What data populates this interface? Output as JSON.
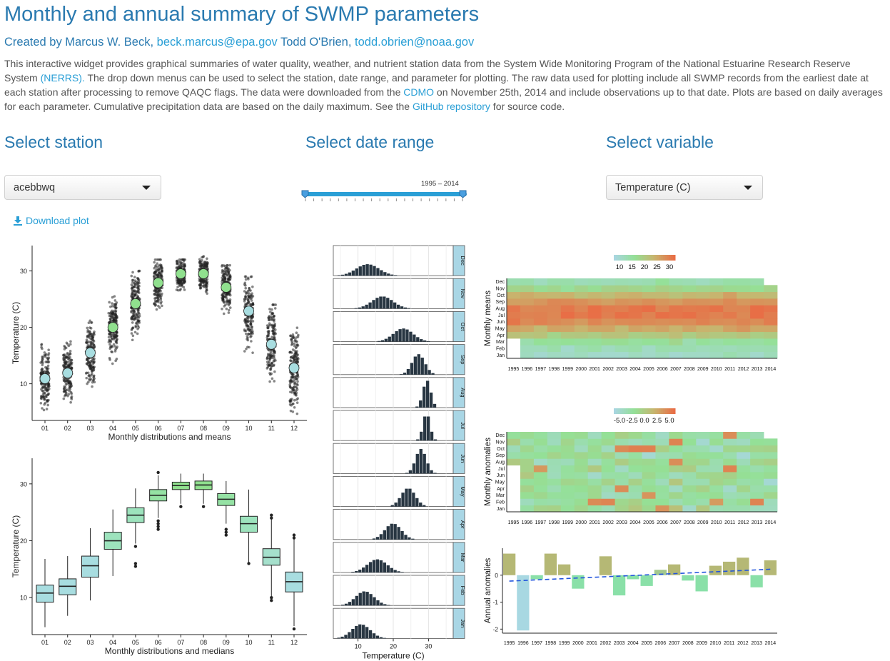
{
  "header": {
    "title": "Monthly and annual summary of SWMP parameters",
    "byline_prefix": "Created by Marcus W. Beck,",
    "author1_email": "beck.marcus@epa.gov",
    "author2": "Todd O'Brien,",
    "author2_email": "todd.obrien@noaa.gov"
  },
  "intro": {
    "p1": "This interactive widget provides graphical summaries of water quality, weather, and nutrient station data from the System Wide Monitoring Program of the National Estuarine Research Reserve System ",
    "link_nerrs": "(NERRS).",
    "p2": " The drop down menus can be used to select the station, date range, and parameter for plotting. The raw data used for plotting include all SWMP records from the earliest date at each station after processing to remove QAQC flags. The data were downloaded from the ",
    "link_cdmo": "CDMO",
    "p3": " on November 25th, 2014 and include observations up to that date. Plots are based on daily averages for each parameter. Cumulative precipitation data are based on the daily maximum. See the ",
    "link_github": "GitHub repository",
    "p4": " for source code."
  },
  "controls": {
    "station_heading": "Select station",
    "station_value": "acebbwq",
    "date_heading": "Select date range",
    "date_range": "1995 – 2014",
    "date_start": 1995,
    "date_end": 2014,
    "variable_heading": "Select variable",
    "variable_value": "Temperature (C)",
    "download_label": "Download plot",
    "download_icon": "download-icon"
  },
  "colors": {
    "accent": "#2a9fd6",
    "heading": "#2a7ab0",
    "mean_fill": "#a8dde0",
    "mean_fill_summer": "#90e08e",
    "hist_bar": "#283642",
    "strip": "#a9d6e5"
  },
  "chart_data": [
    {
      "type": "scatter",
      "title": "",
      "xlabel": "Monthly distributions and means",
      "ylabel": "Temperature (C)",
      "categories": [
        "01",
        "02",
        "03",
        "04",
        "05",
        "06",
        "07",
        "08",
        "09",
        "10",
        "11",
        "12"
      ],
      "means": [
        10.9,
        11.9,
        15.5,
        20.0,
        24.2,
        27.9,
        29.5,
        29.5,
        27.1,
        22.9,
        17.0,
        12.8
      ],
      "spread_low": [
        4.5,
        6.5,
        9.5,
        13.5,
        16,
        22,
        25.5,
        26,
        21.5,
        15.5,
        9.5,
        4.5
      ],
      "spread_high": [
        17,
        17.5,
        22,
        25.5,
        30,
        32,
        32,
        33,
        31,
        29,
        24,
        21
      ],
      "yticks": [
        10,
        20,
        30
      ],
      "ylim": [
        3.5,
        34.5
      ]
    },
    {
      "type": "box",
      "title": "",
      "xlabel": "Monthly distributions and medians",
      "ylabel": "Temperature (C)",
      "categories": [
        "01",
        "02",
        "03",
        "04",
        "05",
        "06",
        "07",
        "08",
        "09",
        "10",
        "11",
        "12"
      ],
      "median": [
        10.8,
        12.0,
        15.6,
        20.0,
        24.5,
        28.0,
        29.7,
        29.8,
        27.3,
        23.0,
        17.1,
        12.8
      ],
      "q1": [
        9.2,
        10.5,
        13.6,
        18.5,
        23.2,
        27.0,
        29.0,
        29.0,
        26.2,
        21.5,
        15.7,
        11.0
      ],
      "q3": [
        12.2,
        13.3,
        17.3,
        21.5,
        25.8,
        29.0,
        30.3,
        30.5,
        28.3,
        24.3,
        18.6,
        14.5
      ],
      "whisker_low": [
        4.8,
        6.8,
        9.5,
        13.8,
        19.5,
        24.0,
        26.5,
        26.5,
        23.0,
        16.0,
        10.0,
        5.0
      ],
      "whisker_high": [
        16.8,
        17.3,
        22.2,
        25.5,
        29.2,
        31.5,
        31.8,
        31.8,
        30.5,
        29.0,
        24.0,
        20.8
      ],
      "outliers": [
        [],
        [],
        [],
        [],
        [
          15.5,
          16.0,
          19.0
        ],
        [
          22.0,
          22.5,
          23.0,
          23.5,
          32.0
        ],
        [
          26.0
        ],
        [
          26.0
        ],
        [
          21.0,
          21.5,
          22.0
        ],
        [
          16.0
        ],
        [
          9.5,
          10.0,
          24.0,
          24.5
        ],
        [
          4.5,
          20.5,
          21.0
        ]
      ],
      "yticks": [
        10,
        20,
        30
      ],
      "ylim": [
        3.5,
        34.5
      ]
    },
    {
      "type": "histogram",
      "xlabel": "Temperature (C)",
      "xticks": [
        10,
        20,
        30
      ],
      "xlim": [
        3,
        37
      ],
      "panels": [
        {
          "label": "Dec",
          "center": 12.8,
          "sd": 3.2
        },
        {
          "label": "Nov",
          "center": 17.0,
          "sd": 3.0
        },
        {
          "label": "Oct",
          "center": 22.9,
          "sd": 2.8
        },
        {
          "label": "Sep",
          "center": 27.2,
          "sd": 1.8
        },
        {
          "label": "Aug",
          "center": 29.6,
          "sd": 1.1
        },
        {
          "label": "Jul",
          "center": 29.5,
          "sd": 1.0
        },
        {
          "label": "Jun",
          "center": 27.9,
          "sd": 1.5
        },
        {
          "label": "May",
          "center": 24.3,
          "sd": 2.0
        },
        {
          "label": "Apr",
          "center": 20.0,
          "sd": 2.3
        },
        {
          "label": "Mar",
          "center": 15.5,
          "sd": 2.8
        },
        {
          "label": "Feb",
          "center": 12.0,
          "sd": 2.6
        },
        {
          "label": "Jan",
          "center": 10.9,
          "sd": 2.6
        }
      ]
    },
    {
      "type": "heatmap",
      "ylabel": "Monthly means",
      "legend_ticks": [
        "10",
        "15",
        "20",
        "25",
        "30"
      ],
      "x": [
        "1995",
        "1996",
        "1997",
        "1998",
        "1999",
        "2000",
        "2001",
        "2002",
        "2003",
        "2004",
        "2005",
        "2006",
        "2007",
        "2008",
        "2009",
        "2010",
        "2011",
        "2012",
        "2013",
        "2014"
      ],
      "months": [
        "Jan",
        "Feb",
        "Mar",
        "Apr",
        "May",
        "Jun",
        "Jul",
        "Aug",
        "Sep",
        "Oct",
        "Nov",
        "Dec"
      ],
      "base": [
        10.9,
        11.9,
        15.5,
        20.0,
        24.2,
        27.9,
        29.5,
        29.5,
        27.1,
        22.9,
        17.0,
        12.8
      ],
      "missing": [
        [
          0,
          0
        ],
        [
          1,
          0
        ],
        [
          2,
          0
        ],
        [
          11,
          19
        ]
      ]
    },
    {
      "type": "heatmap",
      "ylabel": "Monthly anomalies",
      "legend_ticks": [
        "-5.0",
        "-2.5",
        "0.0",
        "2.5",
        "5.0"
      ],
      "x": [
        "1995",
        "1996",
        "1997",
        "1998",
        "1999",
        "2000",
        "2001",
        "2002",
        "2003",
        "2004",
        "2005",
        "2006",
        "2007",
        "2008",
        "2009",
        "2010",
        "2011",
        "2012",
        "2013",
        "2014"
      ],
      "months": [
        "Jan",
        "Feb",
        "Mar",
        "Apr",
        "May",
        "Jun",
        "Jul",
        "Aug",
        "Sep",
        "Oct",
        "Nov",
        "Dec"
      ],
      "missing": [
        [
          0,
          0
        ],
        [
          1,
          0
        ],
        [
          2,
          0
        ],
        [
          3,
          0
        ],
        [
          4,
          0
        ],
        [
          5,
          0
        ],
        [
          6,
          0
        ],
        [
          11,
          19
        ]
      ]
    },
    {
      "type": "bar",
      "ylabel": "Annual anomalies",
      "categories": [
        "1995",
        "1996",
        "1997",
        "1998",
        "1999",
        "2000",
        "2001",
        "2002",
        "2003",
        "2004",
        "2005",
        "2006",
        "2007",
        "2008",
        "2009",
        "2010",
        "2011",
        "2012",
        "2013",
        "2014"
      ],
      "values": [
        0.8,
        -2.05,
        -0.15,
        0.8,
        0.4,
        -0.5,
        0.0,
        0.7,
        -0.75,
        -0.15,
        -0.4,
        0.2,
        0.4,
        -0.2,
        -0.6,
        0.35,
        0.5,
        0.65,
        -0.45,
        0.55
      ],
      "trend_start": -0.22,
      "trend_end": 0.22,
      "yticks": [
        -2,
        -1,
        0
      ],
      "ylim": [
        -2.15,
        1.0
      ]
    }
  ]
}
